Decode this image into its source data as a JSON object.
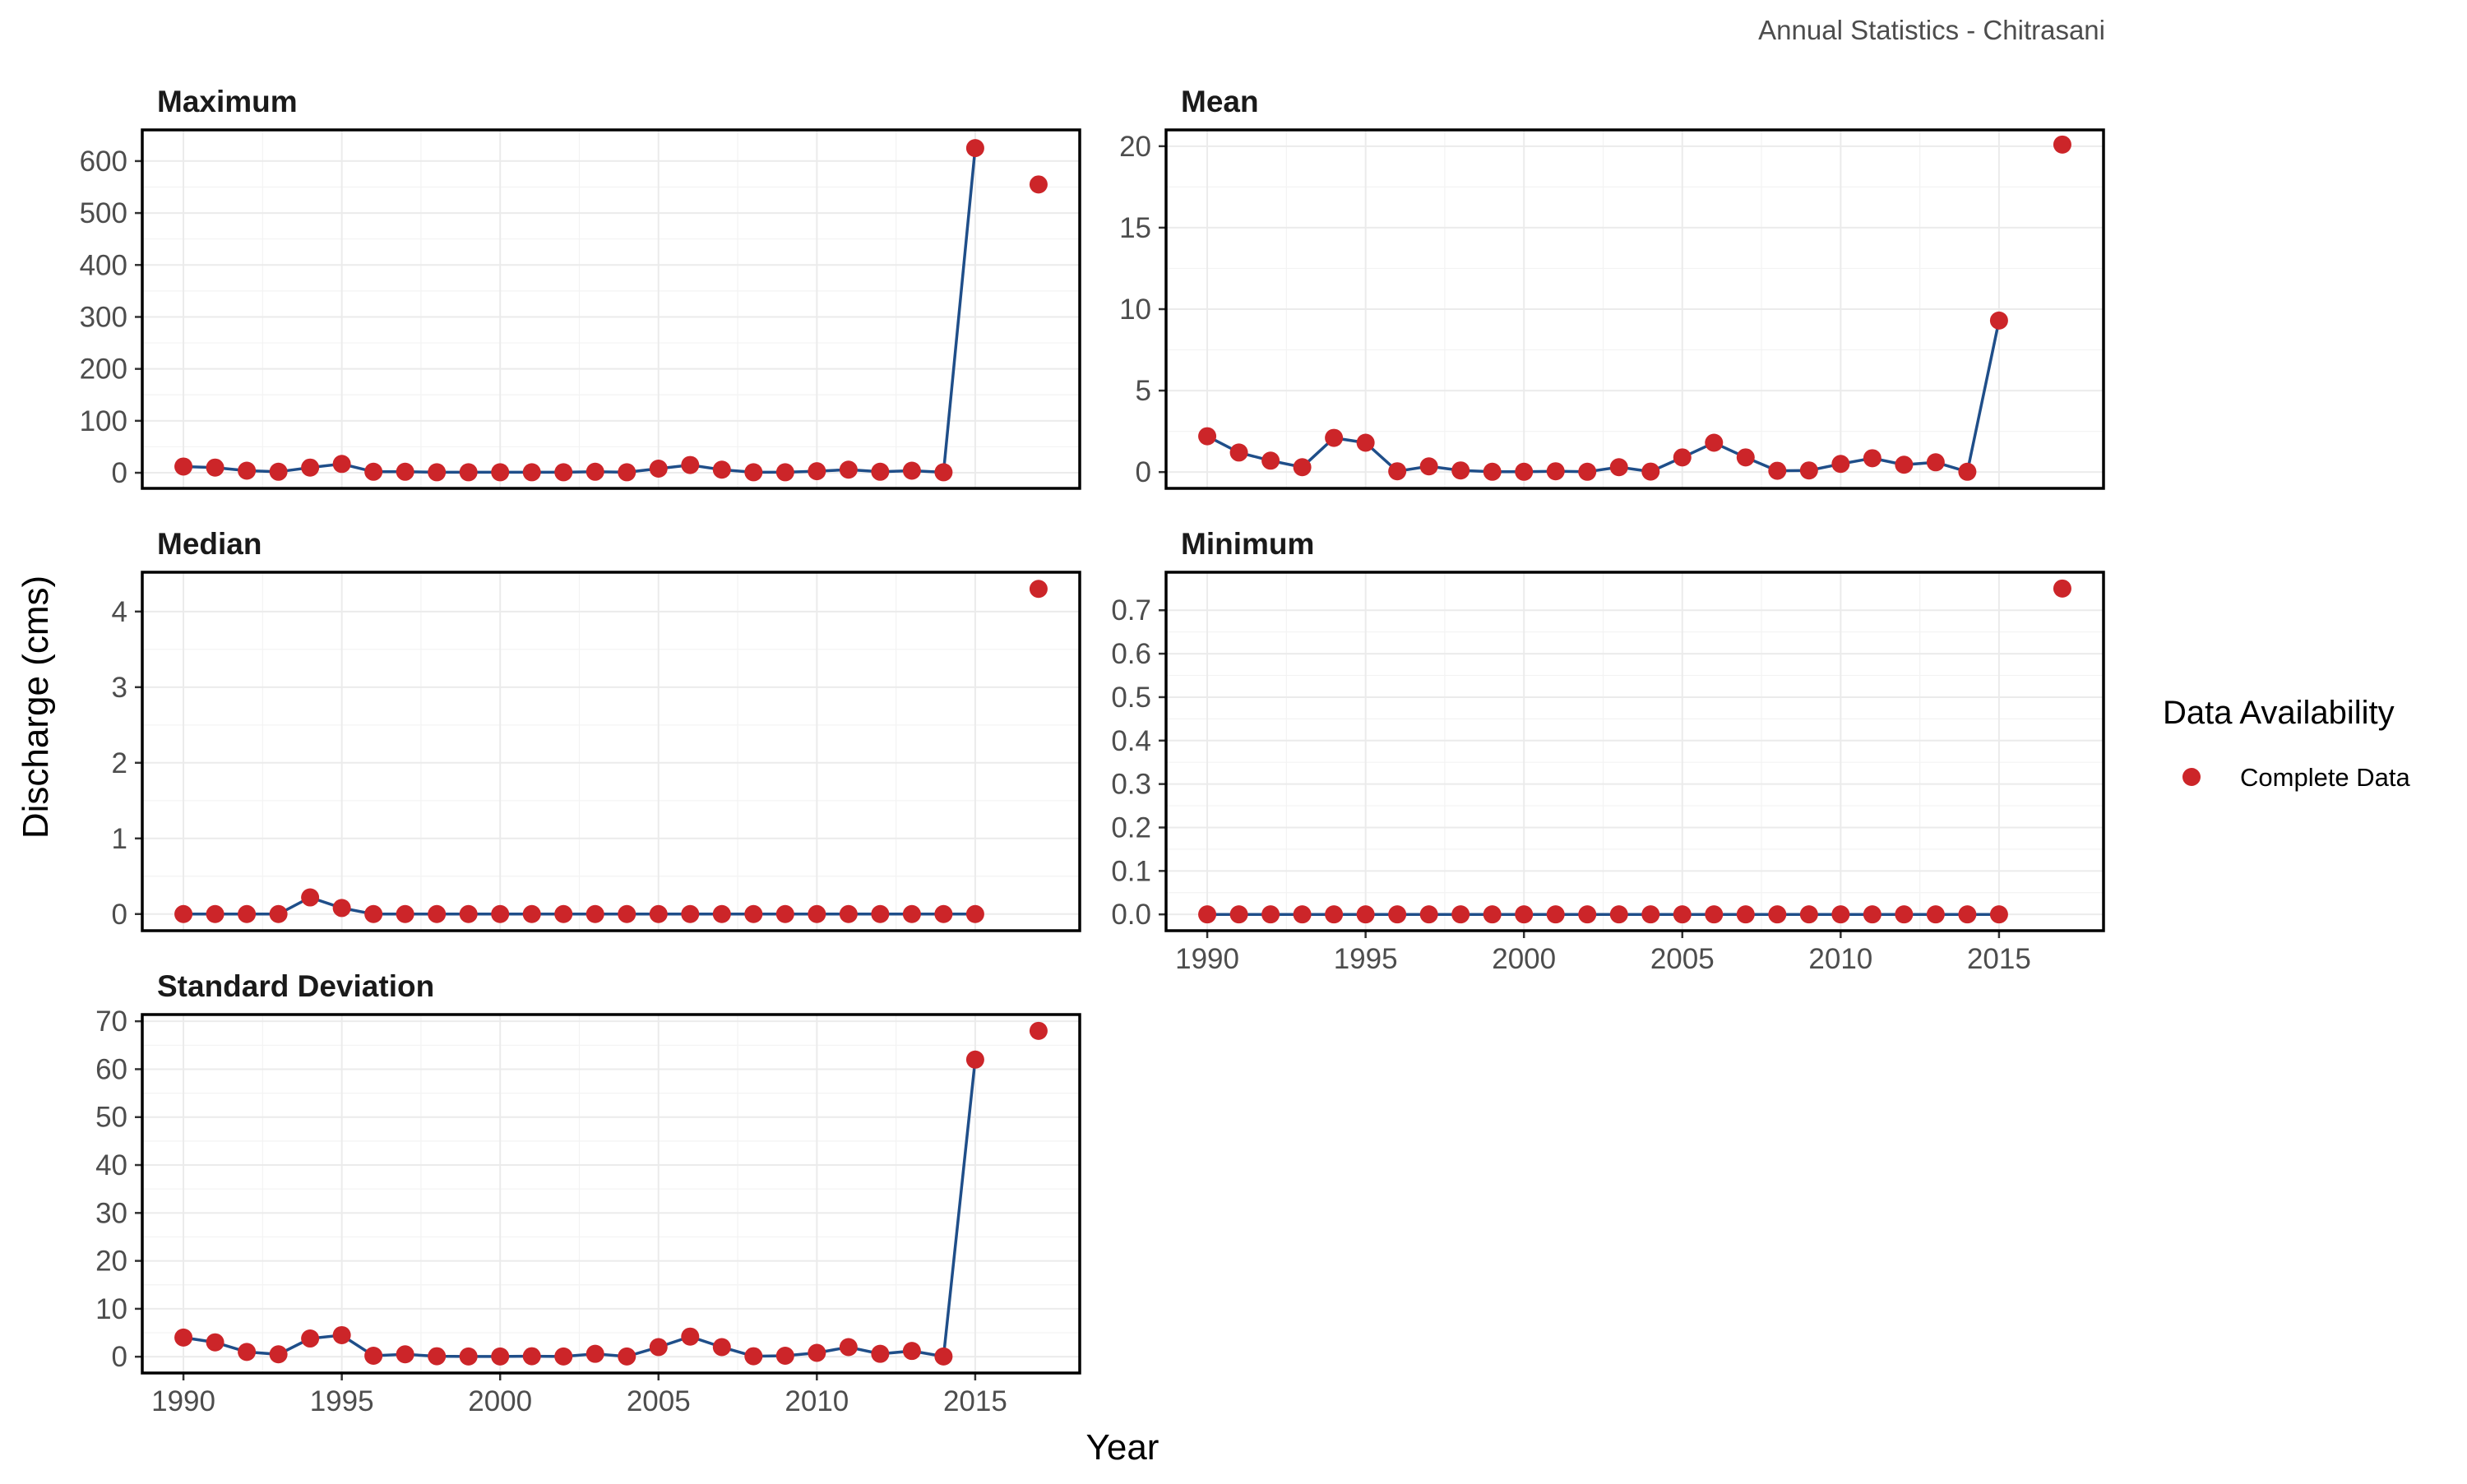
{
  "chart_data": {
    "type": "line",
    "caption": "Annual Statistics - Chitrasani",
    "xlabel": "Year",
    "ylabel": "Discharge (cms)",
    "legend": {
      "title": "Data Availability",
      "entries": [
        {
          "label": "Complete Data",
          "color": "#cc2529"
        }
      ],
      "placement": "right"
    },
    "colors": {
      "line": "#1f4e89",
      "point": "#cc2529",
      "panel_border": "#000000",
      "grid": "#ebebeb"
    },
    "grid": true,
    "x_ticks": [
      1990,
      1995,
      2000,
      2005,
      2010,
      2015
    ],
    "xlim": [
      1988.7,
      2018.3
    ],
    "panels": [
      {
        "title": "Maximum",
        "ylim": [
          -30,
          660
        ],
        "y_ticks": [
          0,
          100,
          200,
          300,
          400,
          500,
          600
        ],
        "y_tick_labels": [
          "0",
          "100",
          "200",
          "300",
          "400",
          "500",
          "600"
        ],
        "show_x_labels": false,
        "points": [
          [
            1990,
            12
          ],
          [
            1991,
            10
          ],
          [
            1992,
            4
          ],
          [
            1993,
            2
          ],
          [
            1994,
            10
          ],
          [
            1995,
            17
          ],
          [
            1996,
            2
          ],
          [
            1997,
            2
          ],
          [
            1998,
            1
          ],
          [
            1999,
            1
          ],
          [
            2000,
            1
          ],
          [
            2001,
            1
          ],
          [
            2002,
            1
          ],
          [
            2003,
            2
          ],
          [
            2004,
            1
          ],
          [
            2005,
            8
          ],
          [
            2006,
            15
          ],
          [
            2007,
            6
          ],
          [
            2008,
            1
          ],
          [
            2009,
            1
          ],
          [
            2010,
            3
          ],
          [
            2011,
            6
          ],
          [
            2012,
            2
          ],
          [
            2013,
            4
          ],
          [
            2014,
            1
          ],
          [
            2015,
            625
          ],
          [
            2017,
            555
          ]
        ]
      },
      {
        "title": "Mean",
        "ylim": [
          -1,
          21
        ],
        "y_ticks": [
          0,
          5,
          10,
          15,
          20
        ],
        "y_tick_labels": [
          "0",
          "5",
          "10",
          "15",
          "20"
        ],
        "show_x_labels": false,
        "points": [
          [
            1990,
            2.2
          ],
          [
            1991,
            1.2
          ],
          [
            1992,
            0.7
          ],
          [
            1993,
            0.3
          ],
          [
            1994,
            2.1
          ],
          [
            1995,
            1.8
          ],
          [
            1996,
            0.05
          ],
          [
            1997,
            0.35
          ],
          [
            1998,
            0.1
          ],
          [
            1999,
            0.02
          ],
          [
            2000,
            0.02
          ],
          [
            2001,
            0.05
          ],
          [
            2002,
            0.02
          ],
          [
            2003,
            0.3
          ],
          [
            2004,
            0.03
          ],
          [
            2005,
            0.9
          ],
          [
            2006,
            1.8
          ],
          [
            2007,
            0.9
          ],
          [
            2008,
            0.08
          ],
          [
            2009,
            0.1
          ],
          [
            2010,
            0.5
          ],
          [
            2011,
            0.85
          ],
          [
            2012,
            0.45
          ],
          [
            2013,
            0.6
          ],
          [
            2014,
            0.02
          ],
          [
            2015,
            9.3
          ],
          [
            2017,
            20.1
          ]
        ]
      },
      {
        "title": "Median",
        "ylim": [
          -0.22,
          4.52
        ],
        "y_ticks": [
          0,
          1,
          2,
          3,
          4
        ],
        "y_tick_labels": [
          "0",
          "1",
          "2",
          "3",
          "4"
        ],
        "show_x_labels": false,
        "points": [
          [
            1990,
            0
          ],
          [
            1991,
            0
          ],
          [
            1992,
            0
          ],
          [
            1993,
            0
          ],
          [
            1994,
            0.22
          ],
          [
            1995,
            0.08
          ],
          [
            1996,
            0
          ],
          [
            1997,
            0
          ],
          [
            1998,
            0
          ],
          [
            1999,
            0
          ],
          [
            2000,
            0
          ],
          [
            2001,
            0
          ],
          [
            2002,
            0
          ],
          [
            2003,
            0
          ],
          [
            2004,
            0
          ],
          [
            2005,
            0
          ],
          [
            2006,
            0
          ],
          [
            2007,
            0
          ],
          [
            2008,
            0
          ],
          [
            2009,
            0
          ],
          [
            2010,
            0
          ],
          [
            2011,
            0
          ],
          [
            2012,
            0
          ],
          [
            2013,
            0
          ],
          [
            2014,
            0
          ],
          [
            2015,
            0
          ],
          [
            2017,
            4.3
          ]
        ]
      },
      {
        "title": "Minimum",
        "ylim": [
          -0.0375,
          0.7875
        ],
        "y_ticks": [
          0,
          0.1,
          0.2,
          0.3,
          0.4,
          0.5,
          0.6,
          0.7
        ],
        "y_tick_labels": [
          "0.0",
          "0.1",
          "0.2",
          "0.3",
          "0.4",
          "0.5",
          "0.6",
          "0.7"
        ],
        "show_x_labels": true,
        "points": [
          [
            1990,
            0
          ],
          [
            1991,
            0
          ],
          [
            1992,
            0
          ],
          [
            1993,
            0
          ],
          [
            1994,
            0
          ],
          [
            1995,
            0
          ],
          [
            1996,
            0
          ],
          [
            1997,
            0
          ],
          [
            1998,
            0
          ],
          [
            1999,
            0
          ],
          [
            2000,
            0
          ],
          [
            2001,
            0
          ],
          [
            2002,
            0
          ],
          [
            2003,
            0
          ],
          [
            2004,
            0
          ],
          [
            2005,
            0
          ],
          [
            2006,
            0
          ],
          [
            2007,
            0
          ],
          [
            2008,
            0
          ],
          [
            2009,
            0
          ],
          [
            2010,
            0
          ],
          [
            2011,
            0
          ],
          [
            2012,
            0
          ],
          [
            2013,
            0
          ],
          [
            2014,
            0
          ],
          [
            2015,
            0
          ],
          [
            2017,
            0.75
          ]
        ]
      },
      {
        "title": "Standard Deviation",
        "ylim": [
          -3.4,
          71.4
        ],
        "y_ticks": [
          0,
          10,
          20,
          30,
          40,
          50,
          60,
          70
        ],
        "y_tick_labels": [
          "0",
          "10",
          "20",
          "30",
          "40",
          "50",
          "60",
          "70"
        ],
        "show_x_labels": true,
        "points": [
          [
            1990,
            4
          ],
          [
            1991,
            3
          ],
          [
            1992,
            1
          ],
          [
            1993,
            0.5
          ],
          [
            1994,
            3.8
          ],
          [
            1995,
            4.5
          ],
          [
            1996,
            0.2
          ],
          [
            1997,
            0.5
          ],
          [
            1998,
            0.1
          ],
          [
            1999,
            0.05
          ],
          [
            2000,
            0.05
          ],
          [
            2001,
            0.1
          ],
          [
            2002,
            0.05
          ],
          [
            2003,
            0.6
          ],
          [
            2004,
            0.05
          ],
          [
            2005,
            2
          ],
          [
            2006,
            4.2
          ],
          [
            2007,
            2
          ],
          [
            2008,
            0.1
          ],
          [
            2009,
            0.2
          ],
          [
            2010,
            0.8
          ],
          [
            2011,
            2
          ],
          [
            2012,
            0.6
          ],
          [
            2013,
            1.2
          ],
          [
            2014,
            0.05
          ],
          [
            2015,
            62
          ],
          [
            2017,
            68
          ]
        ]
      }
    ]
  }
}
